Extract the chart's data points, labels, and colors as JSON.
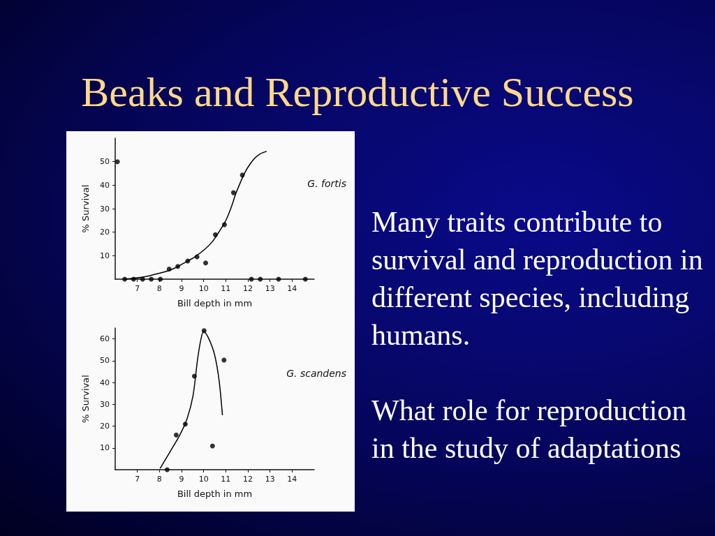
{
  "chart_data": [
    {
      "type": "other",
      "title": "Beaks and Reproductive Success",
      "annotations": [
        "Many traits contribute to survival and reproduction in different species, including humans.",
        "What role for reproduction in the study of adaptations"
      ]
    },
    {
      "type": "scatter",
      "xlabel": "Bill depth in mm",
      "ylabel": "% Survival",
      "xlim": [
        6,
        15
      ],
      "xticks": [
        7,
        8,
        9,
        10,
        11,
        12,
        13,
        14
      ],
      "ylim": [
        0,
        60
      ],
      "yticks": [
        10,
        20,
        30,
        40,
        50
      ],
      "grid": false,
      "marker": "circle",
      "annotations": [
        "G. fortis"
      ],
      "series": [
        {
          "type": "scatter",
          "color": "#000000",
          "x": [
            6.1,
            6.43,
            6.83,
            7.24,
            7.63,
            8.04,
            8.44,
            8.83,
            9.28,
            9.7,
            10.09,
            10.53,
            10.94,
            11.35,
            11.75,
            12.16,
            12.56,
            13.39,
            14.6
          ],
          "values": [
            50,
            0,
            0,
            0,
            0,
            0,
            4.3,
            5.4,
            7.7,
            9.5,
            6.9,
            18.9,
            23.2,
            36.8,
            44.3,
            0,
            0,
            0,
            0
          ]
        },
        {
          "type": "line",
          "color": "#000000",
          "marker": "none",
          "x": [
            6.43,
            7.2,
            8,
            8.6,
            9.1,
            9.6,
            10.05,
            10.4,
            10.7,
            10.95,
            11.13,
            11.3,
            11.45,
            11.7,
            11.9,
            12.1,
            12.3,
            12.55,
            12.85
          ],
          "values": [
            0,
            0.8,
            2.5,
            4.3,
            6.8,
            9.5,
            12.7,
            16,
            20.2,
            24,
            27.7,
            32,
            36.3,
            42,
            46,
            49,
            51.4,
            53.3,
            54.4
          ]
        }
      ]
    },
    {
      "type": "scatter",
      "xlabel": "Bill depth in mm",
      "ylabel": "% Survival",
      "xlim": [
        6,
        15
      ],
      "xticks": [
        7,
        8,
        9,
        10,
        11,
        12,
        13,
        14
      ],
      "ylim": [
        0,
        65
      ],
      "yticks": [
        10,
        20,
        30,
        40,
        50,
        60
      ],
      "grid": false,
      "marker": "circle",
      "annotations": [
        "G. scandens"
      ],
      "series": [
        {
          "type": "scatter",
          "color": "#000000",
          "x": [
            8.35,
            8.76,
            9.17,
            9.58,
            10.02,
            10.4,
            10.92
          ],
          "values": [
            0,
            15.9,
            20.9,
            42.9,
            63.8,
            10.9,
            50.3
          ]
        },
        {
          "type": "line",
          "color": "#000000",
          "marker": "none",
          "x": [
            8.03,
            8.49,
            8.92,
            9.25,
            9.52,
            9.73,
            9.88,
            10.0,
            10.2,
            10.48,
            10.69,
            10.85
          ],
          "values": [
            0.6,
            8.4,
            15.9,
            23.4,
            34,
            51,
            60,
            63.5,
            60.8,
            53.3,
            41.6,
            25
          ]
        }
      ]
    }
  ]
}
